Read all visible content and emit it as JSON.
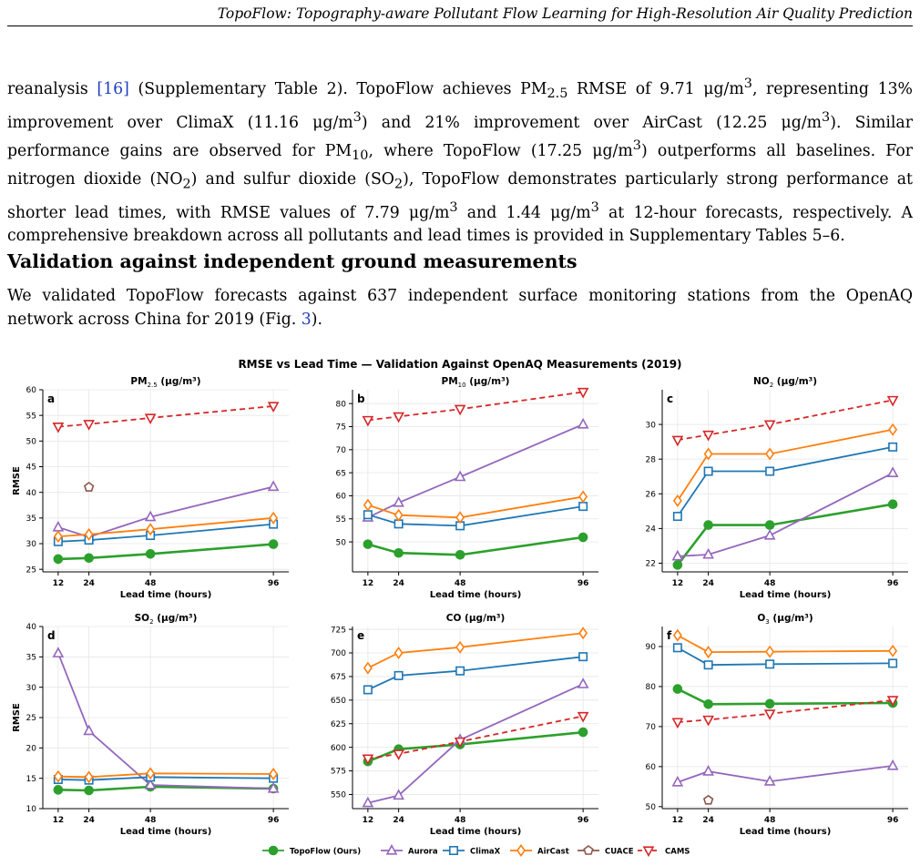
{
  "header": {
    "running_title": "TopoFlow: Topography-aware Pollutant Flow Learning for High-Resolution Air Quality Prediction"
  },
  "intro": {
    "p1": [
      "reanalysis ",
      "[16]",
      " (Supplementary Table 2). TopoFlow achieves PM",
      "2.5",
      " RMSE of 9.71 μg/m",
      "3",
      ", representing 13% improvement over ClimaX (11.16 μg/m",
      "3",
      ") and 21% improvement over AirCast (12.25 μg/m",
      "3",
      "). Similar performance gains are observed for PM",
      "10",
      ", where TopoFlow (17.25 μg/m",
      "3",
      ") outperforms all baselines. For nitrogen dioxide (NO",
      "2",
      ") and sulfur dioxide (SO",
      "2",
      "), TopoFlow demonstrates particularly strong performance at shorter lead times, with RMSE values of 7.79 μg/m",
      "3",
      " and 1.44 μg/m",
      "3",
      " at 12-hour forecasts, respectively. A comprehensive breakdown across all pollutants and lead times is provided in Supplementary Tables 5–6."
    ]
  },
  "section": {
    "title": "Validation against independent ground measurements",
    "p1": [
      "We validated TopoFlow forecasts against 637 independent surface monitoring stations from the OpenAQ network across China for 2019 (Fig. ",
      "3",
      ")."
    ]
  },
  "chart_data": {
    "title": "RMSE vs Lead Time — Validation Against OpenAQ Measurements (2019)",
    "type": "line",
    "x": [
      12,
      24,
      48,
      96
    ],
    "xlabel": "Lead time (hours)",
    "ylabel": "RMSE",
    "grid": true,
    "legend_position": "bottom-center",
    "series_styles": [
      {
        "name": "TopoFlow (Ours)",
        "color": "#2ca02c",
        "marker": "circle",
        "dash": false
      },
      {
        "name": "Aurora",
        "color": "#9467bd",
        "marker": "triangle-up",
        "dash": false
      },
      {
        "name": "ClimaX",
        "color": "#1f77b4",
        "marker": "square",
        "dash": false
      },
      {
        "name": "AirCast",
        "color": "#ff7f0e",
        "marker": "diamond",
        "dash": false
      },
      {
        "name": "CUACE",
        "color": "#8c564b",
        "marker": "pentagon",
        "dash": false
      },
      {
        "name": "CAMS",
        "color": "#d62728",
        "marker": "triangle-down",
        "dash": true
      }
    ],
    "panels": [
      {
        "letter": "a",
        "title_main": "PM",
        "title_sub": "2.5",
        "title_rest": " (μg/m³)",
        "ylim": [
          24.5,
          60
        ],
        "yticks": [
          25,
          30,
          35,
          40,
          45,
          50,
          55,
          60
        ],
        "series": [
          {
            "name": "TopoFlow (Ours)",
            "values": [
              27.0,
              27.2,
              28.0,
              29.9
            ]
          },
          {
            "name": "Aurora",
            "values": [
              33.2,
              31.3,
              35.2,
              41.1
            ]
          },
          {
            "name": "ClimaX",
            "values": [
              30.4,
              30.7,
              31.6,
              33.8
            ]
          },
          {
            "name": "AirCast",
            "values": [
              31.4,
              31.8,
              32.8,
              35.0
            ]
          },
          {
            "name": "CUACE",
            "x": [
              24
            ],
            "values": [
              41.0
            ]
          },
          {
            "name": "CAMS",
            "values": [
              52.8,
              53.3,
              54.5,
              56.8
            ]
          }
        ]
      },
      {
        "letter": "b",
        "title_main": "PM",
        "title_sub": "10",
        "title_rest": " (μg/m³)",
        "ylim": [
          43.5,
          83
        ],
        "yticks": [
          50,
          55,
          60,
          65,
          70,
          75,
          80
        ],
        "series": [
          {
            "name": "TopoFlow (Ours)",
            "values": [
              49.5,
              47.6,
              47.2,
              51.0
            ]
          },
          {
            "name": "Aurora",
            "values": [
              55.3,
              58.5,
              64.1,
              75.5
            ]
          },
          {
            "name": "ClimaX",
            "values": [
              55.9,
              53.9,
              53.5,
              57.7
            ]
          },
          {
            "name": "AirCast",
            "values": [
              58.0,
              55.8,
              55.3,
              59.8
            ]
          },
          {
            "name": "CAMS",
            "values": [
              76.4,
              77.2,
              78.8,
              82.5
            ]
          }
        ]
      },
      {
        "letter": "c",
        "title_main": "NO",
        "title_sub": "2",
        "title_rest": " (μg/m³)",
        "ylim": [
          21.5,
          32
        ],
        "yticks": [
          22,
          24,
          26,
          28,
          30
        ],
        "series": [
          {
            "name": "TopoFlow (Ours)",
            "values": [
              21.9,
              24.2,
              24.2,
              25.4
            ]
          },
          {
            "name": "Aurora",
            "values": [
              22.4,
              22.5,
              23.6,
              27.2
            ]
          },
          {
            "name": "ClimaX",
            "values": [
              24.7,
              27.3,
              27.3,
              28.7
            ]
          },
          {
            "name": "AirCast",
            "values": [
              25.6,
              28.3,
              28.3,
              29.7
            ]
          },
          {
            "name": "CAMS",
            "values": [
              29.1,
              29.4,
              30.0,
              31.4
            ]
          }
        ]
      },
      {
        "letter": "d",
        "title_main": "SO",
        "title_sub": "2",
        "title_rest": " (μg/m³)",
        "ylim": [
          10,
          40
        ],
        "yticks": [
          10,
          15,
          20,
          25,
          30,
          35,
          40
        ],
        "series": [
          {
            "name": "TopoFlow (Ours)",
            "values": [
              13.1,
              13.0,
              13.6,
              13.3
            ]
          },
          {
            "name": "Aurora",
            "values": [
              35.6,
              22.8,
              13.9,
              13.3
            ]
          },
          {
            "name": "ClimaX",
            "values": [
              14.8,
              14.7,
              15.2,
              15.0
            ]
          },
          {
            "name": "AirCast",
            "values": [
              15.3,
              15.2,
              15.8,
              15.7
            ]
          }
        ]
      },
      {
        "letter": "e",
        "title_main": "CO",
        "title_sub": "",
        "title_rest": " (μg/m³)",
        "ylim": [
          535,
          728
        ],
        "yticks": [
          550,
          575,
          600,
          625,
          650,
          675,
          700,
          725
        ],
        "series": [
          {
            "name": "TopoFlow (Ours)",
            "values": [
              585,
              598,
              603,
              616
            ]
          },
          {
            "name": "Aurora",
            "values": [
              541,
              549,
              608,
              667
            ]
          },
          {
            "name": "ClimaX",
            "values": [
              661,
              676,
              681,
              696
            ]
          },
          {
            "name": "AirCast",
            "values": [
              684,
              700,
              706,
              721
            ]
          },
          {
            "name": "CAMS",
            "values": [
              588,
              593,
              606,
              633
            ]
          }
        ]
      },
      {
        "letter": "f",
        "title_main": "O",
        "title_sub": "3",
        "title_rest": " (μg/m³)",
        "ylim": [
          49.5,
          95
        ],
        "yticks": [
          50,
          60,
          70,
          80,
          90
        ],
        "series": [
          {
            "name": "TopoFlow (Ours)",
            "values": [
              79.4,
              75.6,
              75.7,
              75.9
            ]
          },
          {
            "name": "Aurora",
            "values": [
              56.1,
              58.8,
              56.3,
              60.2
            ]
          },
          {
            "name": "ClimaX",
            "values": [
              89.7,
              85.4,
              85.6,
              85.8
            ]
          },
          {
            "name": "AirCast",
            "values": [
              92.8,
              88.6,
              88.7,
              88.9
            ]
          },
          {
            "name": "CUACE",
            "x": [
              24
            ],
            "values": [
              51.6
            ]
          },
          {
            "name": "CAMS",
            "values": [
              71.1,
              71.7,
              73.2,
              76.6
            ]
          }
        ]
      }
    ]
  }
}
